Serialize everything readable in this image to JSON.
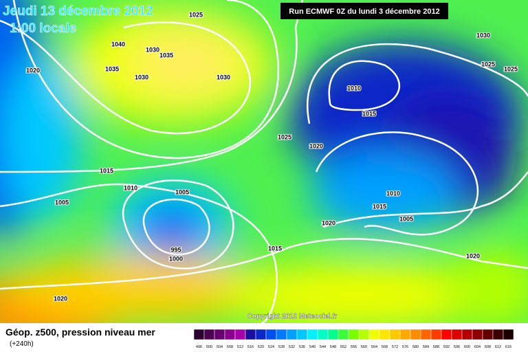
{
  "header": {
    "valid_date": "Jeudi 13 décembre 2012",
    "local_time": "1:00 locale",
    "run": "Run ECMWF 0Z du lundi 3 décembre 2012"
  },
  "map": {
    "copyright": "Copyright 2012 Meteociel.fr",
    "isobar_labels": [
      1025,
      1030,
      1040,
      1030,
      1035,
      1025,
      1025,
      1020,
      1035,
      1030,
      1030,
      1010,
      1015,
      1025,
      1020,
      1015,
      1010,
      1005,
      1005,
      1010,
      1015,
      1005,
      1020,
      995,
      1000,
      1015,
      1020,
      1020
    ]
  },
  "legend": {
    "title": "Géop. z500, pression niveau mer",
    "lead_time": "(+240h)",
    "scale": [
      496,
      500,
      504,
      508,
      512,
      516,
      520,
      524,
      528,
      532,
      536,
      540,
      544,
      548,
      552,
      556,
      560,
      564,
      568,
      572,
      576,
      580,
      584,
      588,
      592,
      596,
      600,
      604,
      608,
      612,
      616
    ],
    "colors": [
      "#2b0030",
      "#4b0050",
      "#6a006e",
      "#8a008c",
      "#a800aa",
      "#1a0ea0",
      "#0a28c8",
      "#0050f0",
      "#0078ff",
      "#00a0ff",
      "#00c8ff",
      "#00f0ff",
      "#00ffc8",
      "#00ff8c",
      "#3cff3c",
      "#78ff00",
      "#b4ff00",
      "#f0ff00",
      "#ffe600",
      "#ffc800",
      "#ffaa00",
      "#ff8c00",
      "#ff6400",
      "#ff3c00",
      "#ff0000",
      "#dc0000",
      "#b40000",
      "#8c0000",
      "#640000",
      "#3c0000",
      "#1a0000"
    ]
  }
}
